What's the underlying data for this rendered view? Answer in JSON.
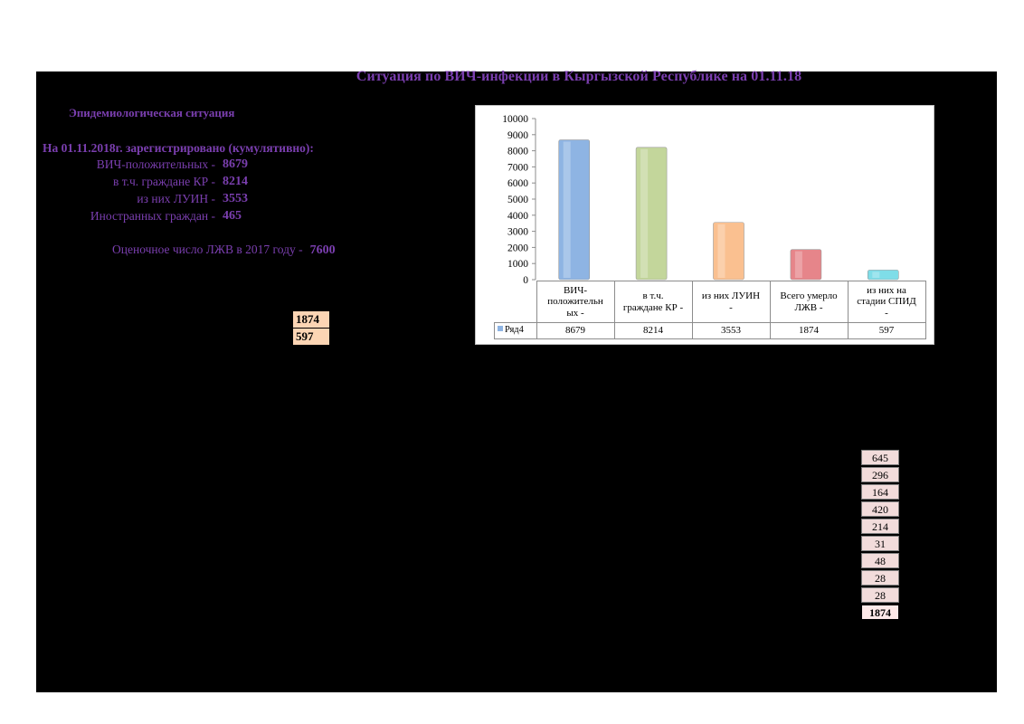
{
  "title": "Ситуация по ВИЧ-инфекции в Кыргызской Республике на 01.11.18",
  "subtitle": "Эпидемиологическая ситуация",
  "registered_line": "На 01.11.2018г. зарегистрировано (кумулятивно):",
  "stats": [
    {
      "label": "ВИЧ-положительных -",
      "value": "8679"
    },
    {
      "label": "в т.ч. граждане КР -",
      "value": "8214"
    },
    {
      "label": "из них ЛУИН -",
      "value": "3553"
    },
    {
      "label": "Иностранных граждан -",
      "value": "465"
    }
  ],
  "estimate": {
    "label": "Оценочное число ЛЖВ в 2017 году -",
    "value": "7600"
  },
  "orange_boxes": [
    "1874",
    "597"
  ],
  "right_boxes": [
    "645",
    "296",
    "164",
    "420",
    "214",
    "31",
    "48",
    "28",
    "28"
  ],
  "right_total": "1874",
  "chart_data": {
    "type": "bar",
    "categories": [
      "ВИЧ-положительных -",
      "в т.ч. граждане КР -",
      "из них ЛУИН -",
      "Всего умерло ЛЖВ -",
      "из них на стадии СПИД -"
    ],
    "category_lines": [
      [
        "ВИЧ-",
        "положительн",
        "ых -"
      ],
      [
        "в т.ч.",
        "граждане КР -"
      ],
      [
        "из них ЛУИН",
        "-"
      ],
      [
        "Всего умерло",
        "ЛЖВ -"
      ],
      [
        "из них на",
        "стадии СПИД",
        "-"
      ]
    ],
    "series": [
      {
        "name": "Ряд4",
        "values": [
          8679,
          8214,
          3553,
          1874,
          597
        ]
      }
    ],
    "value_labels": [
      "8679",
      "8214",
      "3553",
      "1874",
      "597"
    ],
    "ylim": [
      0,
      10000
    ],
    "yticks": [
      "0",
      "1000",
      "2000",
      "3000",
      "4000",
      "5000",
      "6000",
      "7000",
      "8000",
      "9000",
      "10000"
    ],
    "bar_colors": [
      "#8eb4e3",
      "#c3d69b",
      "#fac090",
      "#e6858a",
      "#7fdde8"
    ],
    "legend": "data table",
    "grid": false
  }
}
